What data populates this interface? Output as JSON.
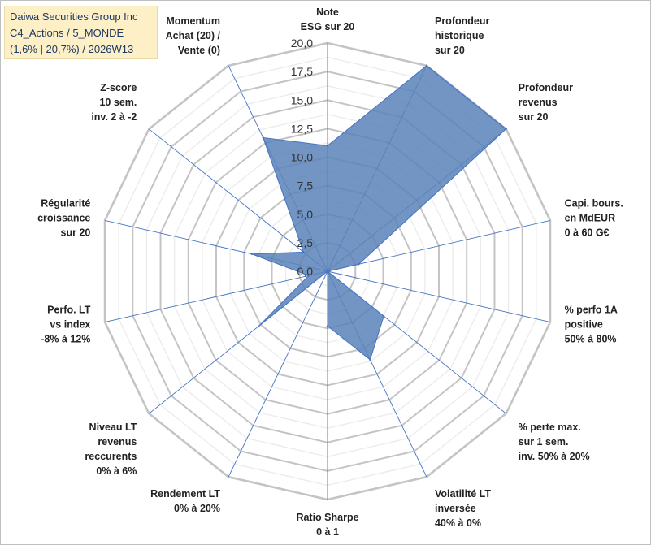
{
  "chart_data": {
    "type": "radar",
    "title_lines": [
      "Daiwa Securities Group Inc",
      "C4_Actions / 5_MONDE",
      "(1,6% | 20,7%) / 2026W13"
    ],
    "axes": [
      {
        "label": [
          "Note",
          "ESG sur 20"
        ]
      },
      {
        "label": [
          "Profondeur",
          "historique",
          "sur 20"
        ]
      },
      {
        "label": [
          "Profondeur",
          "revenus",
          "sur 20"
        ]
      },
      {
        "label": [
          "Capi. bours.",
          "en MdEUR",
          "0 à 60 G€"
        ]
      },
      {
        "label": [
          "% perfo 1A",
          "positive",
          "50% à 80%"
        ]
      },
      {
        "label": [
          "% perte max.",
          "sur 1 sem.",
          "inv. 50% à 20%"
        ]
      },
      {
        "label": [
          "Volatilité LT",
          "inversée",
          "40% à 0%"
        ]
      },
      {
        "label": [
          "Ratio Sharpe",
          "0 à 1"
        ]
      },
      {
        "label": [
          "Rendement LT",
          "0% à 20%"
        ]
      },
      {
        "label": [
          "Niveau LT",
          "revenus",
          "reccurents",
          "0% à 6%"
        ]
      },
      {
        "label": [
          "Perfo. LT",
          "vs index",
          "-8% à 12%"
        ]
      },
      {
        "label": [
          "Régularité",
          "croissance",
          "sur 20"
        ]
      },
      {
        "label": [
          "Z-score",
          "10 sem.",
          "inv. 2 à -2"
        ]
      },
      {
        "label": [
          "Momentum",
          "Achat (20) /",
          "Vente (0)"
        ]
      }
    ],
    "values": [
      11.0,
      20.0,
      20.0,
      2.8,
      0.0,
      6.3,
      8.6,
      4.8,
      0.0,
      7.7,
      1.7,
      6.8,
      2.7,
      13.0
    ],
    "r_min": 0,
    "r_max": 20,
    "r_ticks": [
      "0,0",
      "2,5",
      "5,0",
      "7,5",
      "10,0",
      "12,5",
      "15,0",
      "17,5",
      "20,0"
    ],
    "series_name": "Daiwa Securities Group Inc",
    "colors": {
      "fill": "#5b82b8",
      "stroke": "#4472c4",
      "grid": "#c8c8c8",
      "spoke": "#4472c4"
    }
  }
}
